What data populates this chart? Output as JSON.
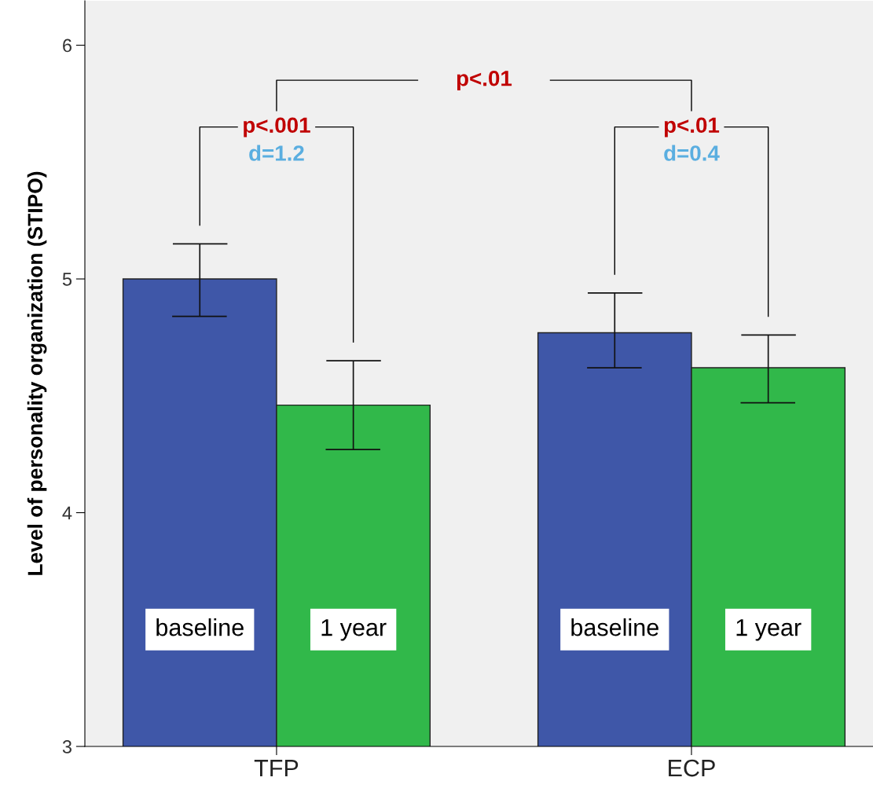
{
  "chart_data": {
    "type": "bar",
    "ylabel": "Level of personality organization (STIPO)",
    "categories": [
      "TFP",
      "ECP"
    ],
    "series": [
      {
        "name": "baseline",
        "color": "#3f57a8",
        "values": [
          5.0,
          4.77
        ],
        "errors": [
          [
            4.84,
            5.15
          ],
          [
            4.62,
            4.94
          ]
        ]
      },
      {
        "name": "1 year",
        "color": "#31b84a",
        "values": [
          4.46,
          4.62
        ],
        "errors": [
          [
            4.27,
            4.65
          ],
          [
            4.47,
            4.76
          ]
        ]
      }
    ],
    "ylim": [
      3,
      6.19
    ],
    "yticks": [
      3,
      4,
      5,
      6
    ],
    "grid": false,
    "legend": false,
    "annotations": [
      "p<.001",
      "d=1.2",
      "p<.01",
      "d=0.4",
      "p<.01"
    ]
  }
}
